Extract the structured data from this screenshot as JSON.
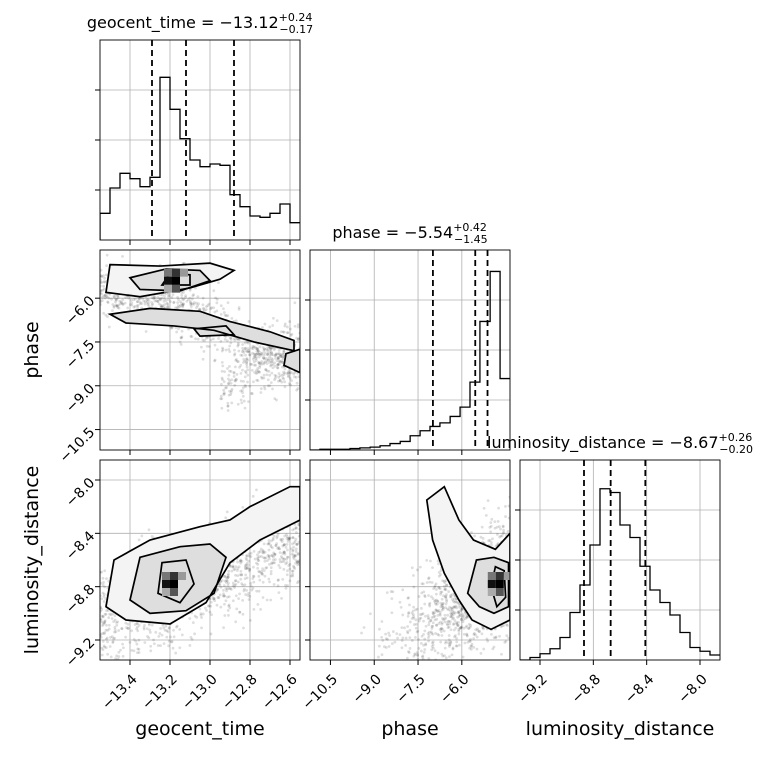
{
  "chart_data": {
    "type": "corner",
    "parameters": [
      "geocent_time",
      "phase",
      "luminosity_distance"
    ],
    "titles": [
      {
        "param": "geocent_time",
        "median": "−13.12",
        "plus": "+0.24",
        "minus": "−0.17"
      },
      {
        "param": "phase",
        "median": "−5.54",
        "plus": "+0.42",
        "minus": "−1.45"
      },
      {
        "param": "luminosity_distance",
        "median": "−8.67",
        "plus": "+0.26",
        "minus": "−0.20"
      }
    ],
    "ranges": {
      "geocent_time": [
        -13.55,
        -12.55
      ],
      "phase": [
        -11.2,
        -4.35
      ],
      "luminosity_distance": [
        -9.35,
        -7.85
      ]
    },
    "ticks": {
      "geocent_time": {
        "values": [
          -13.4,
          -13.2,
          -13.0,
          -12.8,
          -12.6
        ],
        "labels": [
          "−13.4",
          "−13.2",
          "−13.0",
          "−12.8",
          "−12.6"
        ]
      },
      "phase": {
        "values": [
          -10.5,
          -9.0,
          -7.5,
          -6.0
        ],
        "labels": [
          "−10.5",
          "−9.0",
          "−7.5",
          "−6.0"
        ]
      },
      "luminosity_distance": {
        "values": [
          -9.2,
          -8.8,
          -8.4,
          -8.0
        ],
        "labels": [
          "−9.2",
          "−8.8",
          "−8.4",
          "−8.0"
        ]
      }
    },
    "histograms": {
      "geocent_time": {
        "edges": [
          -13.55,
          -13.5,
          -13.45,
          -13.4,
          -13.35,
          -13.3,
          -13.25,
          -13.2,
          -13.15,
          -13.1,
          -13.05,
          -13.0,
          -12.95,
          -12.9,
          -12.85,
          -12.8,
          -12.75,
          -12.7,
          -12.65,
          -12.6,
          -12.55
        ],
        "counts": [
          20,
          39,
          50,
          46,
          40,
          47,
          122,
          98,
          76,
          60,
          55,
          57,
          56,
          34,
          25,
          18,
          17,
          20,
          27,
          13
        ],
        "quantiles": [
          -13.29,
          -13.12,
          -12.88
        ],
        "ymax": 150
      },
      "phase": {
        "edges": [
          -11.2,
          -10.86,
          -10.51,
          -10.17,
          -9.83,
          -9.49,
          -9.14,
          -8.8,
          -8.46,
          -8.11,
          -7.77,
          -7.43,
          -7.09,
          -6.75,
          -6.4,
          -6.06,
          -5.72,
          -5.38,
          -5.03,
          -4.69,
          -4.35
        ],
        "counts": [
          0,
          1,
          1,
          1,
          2,
          3,
          4,
          6,
          9,
          12,
          20,
          27,
          33,
          38,
          47,
          60,
          95,
          180,
          250,
          100
        ],
        "quantiles": [
          -6.99,
          -5.54,
          -5.12
        ],
        "ymax": 280
      },
      "luminosity_distance": {
        "edges": [
          -9.35,
          -9.275,
          -9.2,
          -9.125,
          -9.05,
          -8.975,
          -8.9,
          -8.825,
          -8.75,
          -8.675,
          -8.6,
          -8.525,
          -8.45,
          -8.375,
          -8.3,
          -8.225,
          -8.15,
          -8.075,
          -8.0,
          -7.925,
          -7.85
        ],
        "counts": [
          0,
          2,
          5,
          9,
          18,
          38,
          60,
          92,
          137,
          134,
          108,
          98,
          75,
          56,
          46,
          36,
          22,
          10,
          7,
          4
        ],
        "quantiles": [
          -8.87,
          -8.67,
          -8.41
        ],
        "ymax": 160
      }
    },
    "pairs": [
      {
        "x": "geocent_time",
        "y": "phase",
        "peak": [
          -13.17,
          -5.4
        ],
        "contours": [
          [
            [
              -13.5,
              -4.85
            ],
            [
              -13.25,
              -4.9
            ],
            [
              -13.0,
              -4.8
            ],
            [
              -12.88,
              -5.05
            ],
            [
              -12.95,
              -5.35
            ],
            [
              -13.1,
              -5.65
            ],
            [
              -13.35,
              -5.95
            ],
            [
              -13.52,
              -5.8
            ]
          ],
          [
            [
              -13.4,
              -5.3
            ],
            [
              -13.22,
              -5.0
            ],
            [
              -13.05,
              -5.05
            ],
            [
              -13.0,
              -5.4
            ],
            [
              -13.15,
              -5.75
            ],
            [
              -13.35,
              -5.7
            ]
          ],
          [
            [
              -13.24,
              -5.55
            ],
            [
              -13.2,
              -5.15
            ],
            [
              -13.1,
              -5.2
            ],
            [
              -13.1,
              -5.55
            ]
          ],
          [
            [
              -13.5,
              -6.55
            ],
            [
              -13.3,
              -6.35
            ],
            [
              -13.05,
              -6.45
            ],
            [
              -12.9,
              -6.8
            ],
            [
              -12.7,
              -7.15
            ],
            [
              -12.58,
              -7.45
            ],
            [
              -12.58,
              -7.8
            ],
            [
              -12.78,
              -7.5
            ],
            [
              -12.98,
              -7.1
            ],
            [
              -13.18,
              -6.95
            ],
            [
              -13.42,
              -6.85
            ]
          ],
          [
            [
              -13.08,
              -7.05
            ],
            [
              -12.92,
              -6.95
            ],
            [
              -12.88,
              -7.25
            ],
            [
              -13.05,
              -7.3
            ]
          ],
          [
            [
              -12.62,
              -7.9
            ],
            [
              -12.55,
              -7.75
            ],
            [
              -12.55,
              -8.55
            ],
            [
              -12.63,
              -8.3
            ]
          ]
        ]
      },
      {
        "x": "geocent_time",
        "y": "luminosity_distance",
        "peak": [
          -13.18,
          -8.78
        ],
        "contours": [
          [
            [
              -13.52,
              -8.95
            ],
            [
              -13.48,
              -8.6
            ],
            [
              -13.3,
              -8.45
            ],
            [
              -13.05,
              -8.35
            ],
            [
              -12.9,
              -8.3
            ],
            [
              -12.8,
              -8.2
            ],
            [
              -12.6,
              -8.05
            ],
            [
              -12.55,
              -8.05
            ],
            [
              -12.55,
              -8.3
            ],
            [
              -12.75,
              -8.45
            ],
            [
              -12.9,
              -8.62
            ],
            [
              -13.02,
              -8.92
            ],
            [
              -13.2,
              -9.08
            ],
            [
              -13.42,
              -9.05
            ]
          ],
          [
            [
              -13.4,
              -8.9
            ],
            [
              -13.35,
              -8.58
            ],
            [
              -13.15,
              -8.5
            ],
            [
              -13.0,
              -8.48
            ],
            [
              -12.92,
              -8.58
            ],
            [
              -12.98,
              -8.85
            ],
            [
              -13.12,
              -8.98
            ],
            [
              -13.3,
              -9.0
            ]
          ],
          [
            [
              -13.26,
              -8.85
            ],
            [
              -13.24,
              -8.62
            ],
            [
              -13.12,
              -8.6
            ],
            [
              -13.08,
              -8.78
            ],
            [
              -13.15,
              -8.92
            ]
          ]
        ]
      },
      {
        "x": "phase",
        "y": "luminosity_distance",
        "peak": [
          -4.7,
          -8.78
        ],
        "contours": [
          [
            [
              -7.2,
              -8.15
            ],
            [
              -6.6,
              -8.05
            ],
            [
              -6.1,
              -8.3
            ],
            [
              -5.6,
              -8.45
            ],
            [
              -4.85,
              -8.52
            ],
            [
              -4.35,
              -8.4
            ],
            [
              -4.35,
              -9.05
            ],
            [
              -5.0,
              -9.12
            ],
            [
              -5.65,
              -9.05
            ],
            [
              -6.1,
              -8.9
            ],
            [
              -6.6,
              -8.7
            ],
            [
              -7.0,
              -8.45
            ]
          ],
          [
            [
              -5.8,
              -8.85
            ],
            [
              -5.5,
              -8.6
            ],
            [
              -4.9,
              -8.58
            ],
            [
              -4.4,
              -8.62
            ],
            [
              -4.4,
              -8.95
            ],
            [
              -4.9,
              -9.0
            ],
            [
              -5.4,
              -8.95
            ]
          ],
          [
            [
              -5.0,
              -8.8
            ],
            [
              -4.85,
              -8.65
            ],
            [
              -4.55,
              -8.68
            ],
            [
              -4.5,
              -8.88
            ],
            [
              -4.8,
              -8.95
            ]
          ]
        ]
      }
    ]
  }
}
